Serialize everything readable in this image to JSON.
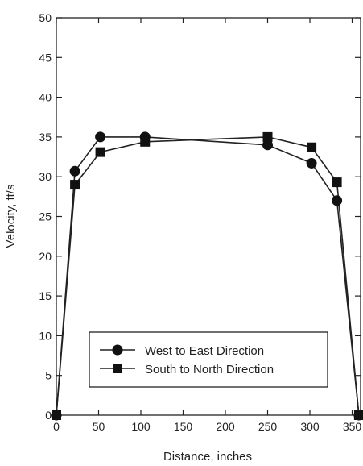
{
  "chart_data": {
    "type": "line",
    "xlabel": "Distance, inches",
    "ylabel": "Velocity, ft/s",
    "xlim": [
      0,
      360
    ],
    "ylim": [
      0,
      50
    ],
    "xticks": [
      0,
      50,
      100,
      150,
      200,
      250,
      300,
      350
    ],
    "yticks": [
      0,
      5,
      10,
      15,
      20,
      25,
      30,
      35,
      40,
      45,
      50
    ],
    "grid": false,
    "legend_position": "lower-center",
    "series": [
      {
        "name": "West to East Direction",
        "marker": "circle",
        "x": [
          0,
          22,
          52,
          105,
          250,
          302,
          332,
          358
        ],
        "y": [
          0,
          30.7,
          35.0,
          35.0,
          34.0,
          31.7,
          27.0,
          0
        ]
      },
      {
        "name": "South to North Direction",
        "marker": "square",
        "x": [
          0,
          22,
          52,
          105,
          250,
          302,
          332,
          358
        ],
        "y": [
          0,
          29.0,
          33.1,
          34.4,
          35.0,
          33.7,
          29.3,
          0
        ]
      }
    ]
  }
}
